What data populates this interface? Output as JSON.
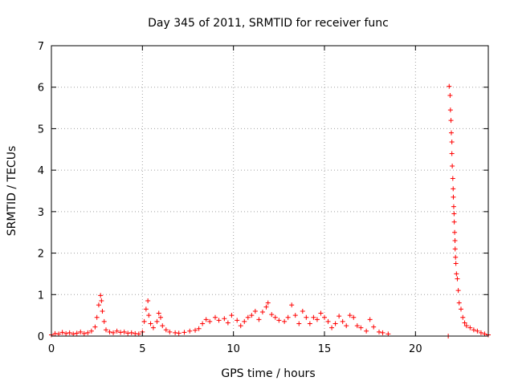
{
  "chart_data": {
    "type": "scatter",
    "title": "Day 345 of 2011, SRMTID for receiver func",
    "xlabel": "GPS time / hours",
    "ylabel": "SRMTID / TECUs",
    "xlim": [
      0,
      24
    ],
    "ylim": [
      0,
      7
    ],
    "x_ticks": [
      0,
      5,
      10,
      15,
      20
    ],
    "y_ticks": [
      0,
      1,
      2,
      3,
      4,
      5,
      6,
      7
    ],
    "grid": true,
    "marker": "+",
    "series_color": "#ff0000",
    "series": [
      {
        "name": "",
        "points": [
          [
            0.0,
            0.03
          ],
          [
            0.2,
            0.06
          ],
          [
            0.4,
            0.05
          ],
          [
            0.6,
            0.09
          ],
          [
            0.8,
            0.06
          ],
          [
            1.0,
            0.08
          ],
          [
            1.2,
            0.05
          ],
          [
            1.4,
            0.07
          ],
          [
            1.6,
            0.1
          ],
          [
            1.8,
            0.06
          ],
          [
            2.0,
            0.08
          ],
          [
            2.2,
            0.12
          ],
          [
            2.4,
            0.22
          ],
          [
            2.5,
            0.45
          ],
          [
            2.6,
            0.75
          ],
          [
            2.7,
            0.98
          ],
          [
            2.75,
            0.85
          ],
          [
            2.8,
            0.6
          ],
          [
            2.9,
            0.35
          ],
          [
            3.0,
            0.15
          ],
          [
            3.2,
            0.1
          ],
          [
            3.4,
            0.08
          ],
          [
            3.6,
            0.12
          ],
          [
            3.8,
            0.09
          ],
          [
            4.0,
            0.1
          ],
          [
            4.2,
            0.07
          ],
          [
            4.4,
            0.08
          ],
          [
            4.6,
            0.06
          ],
          [
            4.8,
            0.05
          ],
          [
            5.0,
            0.1
          ],
          [
            5.1,
            0.35
          ],
          [
            5.2,
            0.65
          ],
          [
            5.3,
            0.85
          ],
          [
            5.35,
            0.5
          ],
          [
            5.45,
            0.3
          ],
          [
            5.6,
            0.2
          ],
          [
            5.8,
            0.35
          ],
          [
            5.9,
            0.55
          ],
          [
            6.0,
            0.45
          ],
          [
            6.1,
            0.25
          ],
          [
            6.3,
            0.15
          ],
          [
            6.5,
            0.1
          ],
          [
            6.8,
            0.08
          ],
          [
            7.0,
            0.07
          ],
          [
            7.3,
            0.09
          ],
          [
            7.6,
            0.12
          ],
          [
            7.9,
            0.14
          ],
          [
            8.1,
            0.18
          ],
          [
            8.3,
            0.3
          ],
          [
            8.5,
            0.4
          ],
          [
            8.7,
            0.35
          ],
          [
            9.0,
            0.45
          ],
          [
            9.2,
            0.38
          ],
          [
            9.5,
            0.42
          ],
          [
            9.7,
            0.32
          ],
          [
            9.9,
            0.5
          ],
          [
            10.2,
            0.38
          ],
          [
            10.4,
            0.25
          ],
          [
            10.6,
            0.35
          ],
          [
            10.8,
            0.45
          ],
          [
            11.0,
            0.5
          ],
          [
            11.2,
            0.6
          ],
          [
            11.4,
            0.4
          ],
          [
            11.6,
            0.58
          ],
          [
            11.8,
            0.7
          ],
          [
            11.9,
            0.8
          ],
          [
            12.1,
            0.52
          ],
          [
            12.3,
            0.45
          ],
          [
            12.5,
            0.38
          ],
          [
            12.8,
            0.35
          ],
          [
            13.0,
            0.45
          ],
          [
            13.2,
            0.75
          ],
          [
            13.4,
            0.5
          ],
          [
            13.6,
            0.3
          ],
          [
            13.8,
            0.6
          ],
          [
            14.0,
            0.45
          ],
          [
            14.2,
            0.3
          ],
          [
            14.4,
            0.45
          ],
          [
            14.6,
            0.4
          ],
          [
            14.8,
            0.55
          ],
          [
            15.0,
            0.45
          ],
          [
            15.2,
            0.35
          ],
          [
            15.4,
            0.2
          ],
          [
            15.6,
            0.3
          ],
          [
            15.8,
            0.48
          ],
          [
            16.0,
            0.35
          ],
          [
            16.2,
            0.25
          ],
          [
            16.4,
            0.5
          ],
          [
            16.6,
            0.45
          ],
          [
            16.8,
            0.25
          ],
          [
            17.0,
            0.2
          ],
          [
            17.3,
            0.12
          ],
          [
            17.5,
            0.4
          ],
          [
            17.7,
            0.22
          ],
          [
            18.0,
            0.1
          ],
          [
            18.2,
            0.08
          ],
          [
            18.5,
            0.05
          ],
          [
            21.8,
            0.0
          ],
          [
            21.85,
            6.02
          ],
          [
            21.9,
            5.8
          ],
          [
            21.92,
            5.45
          ],
          [
            21.95,
            5.2
          ],
          [
            21.97,
            4.9
          ],
          [
            22.0,
            4.68
          ],
          [
            22.0,
            4.4
          ],
          [
            22.02,
            4.1
          ],
          [
            22.05,
            3.8
          ],
          [
            22.07,
            3.55
          ],
          [
            22.08,
            3.35
          ],
          [
            22.1,
            3.12
          ],
          [
            22.12,
            2.95
          ],
          [
            22.13,
            2.75
          ],
          [
            22.15,
            2.5
          ],
          [
            22.17,
            2.3
          ],
          [
            22.18,
            2.1
          ],
          [
            22.2,
            1.9
          ],
          [
            22.22,
            1.75
          ],
          [
            22.25,
            1.5
          ],
          [
            22.3,
            1.38
          ],
          [
            22.35,
            1.1
          ],
          [
            22.4,
            0.8
          ],
          [
            22.5,
            0.65
          ],
          [
            22.6,
            0.45
          ],
          [
            22.7,
            0.32
          ],
          [
            22.8,
            0.25
          ],
          [
            23.0,
            0.2
          ],
          [
            23.2,
            0.15
          ],
          [
            23.4,
            0.12
          ],
          [
            23.6,
            0.08
          ],
          [
            23.8,
            0.05
          ],
          [
            24.0,
            0.03
          ]
        ]
      }
    ]
  }
}
